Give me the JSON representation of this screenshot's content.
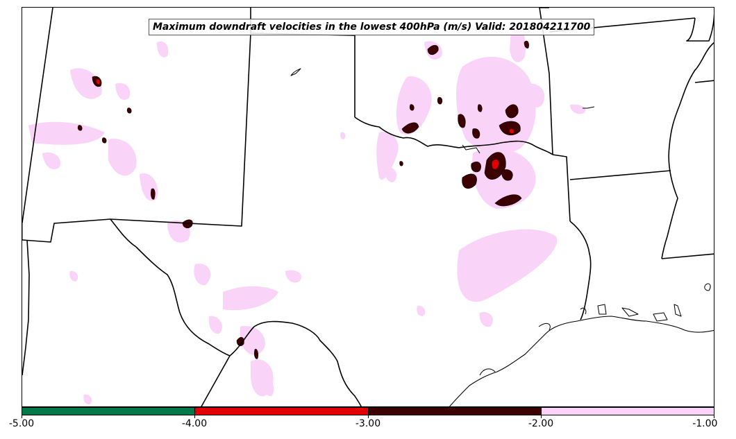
{
  "title": "Maximum downdraft velocities in the lowest 400hPa (m/s) Valid: 201804211700",
  "colorbar": {
    "segments": [
      {
        "color": "#00784a",
        "from": "-5.00",
        "to": "-4.00"
      },
      {
        "color": "#e00000",
        "from": "-4.00",
        "to": "-3.00"
      },
      {
        "color": "#3d0000",
        "from": "-3.00",
        "to": "-2.00"
      },
      {
        "color": "#fad4f8",
        "from": "-2.00",
        "to": "-1.00"
      }
    ],
    "ticks": [
      "-5.00",
      "-4.00",
      "-3.00",
      "-2.00",
      "-1.00"
    ]
  },
  "colors": {
    "light": "#fad4f8",
    "dark": "#3d0000",
    "red": "#e00000",
    "border": "#000000"
  }
}
